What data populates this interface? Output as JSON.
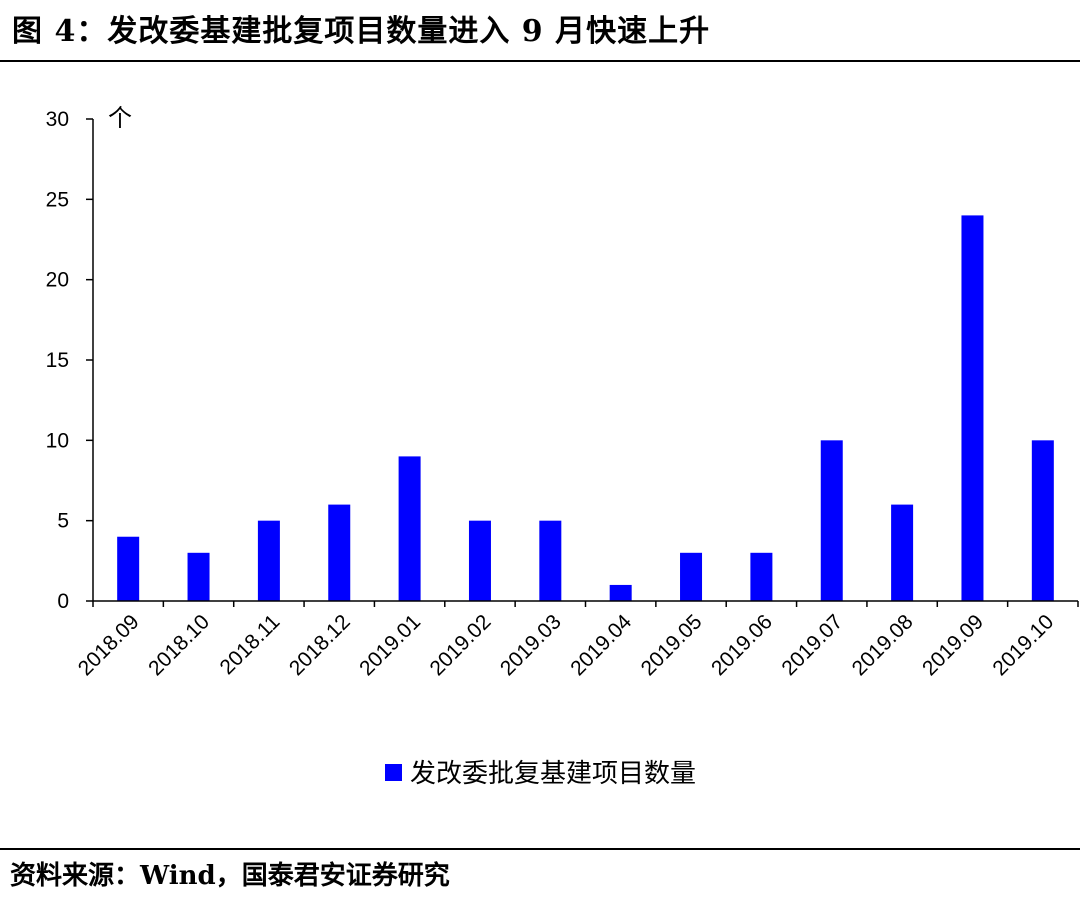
{
  "header": {
    "title": "图 4：发改委基建批复项目数量进入 9 月快速上升"
  },
  "footer": {
    "source": "资料来源：Wind，国泰君安证券研究"
  },
  "colors": {
    "bar": "#0000ff",
    "axis": "#000000"
  },
  "chart_data": {
    "type": "bar",
    "title": "",
    "ylabel": "个",
    "xlabel": "",
    "ylim": [
      0,
      30
    ],
    "yticks": [
      0,
      5,
      10,
      15,
      20,
      25,
      30
    ],
    "grid": false,
    "legend_position": "bottom",
    "categories": [
      "2018.09",
      "2018.10",
      "2018.11",
      "2018.12",
      "2019.01",
      "2019.02",
      "2019.03",
      "2019.04",
      "2019.05",
      "2019.06",
      "2019.07",
      "2019.08",
      "2019.09",
      "2019.10"
    ],
    "series": [
      {
        "name": "发改委批复基建项目数量",
        "values": [
          4,
          3,
          5,
          6,
          9,
          5,
          5,
          1,
          3,
          3,
          10,
          6,
          24,
          10
        ]
      }
    ]
  }
}
